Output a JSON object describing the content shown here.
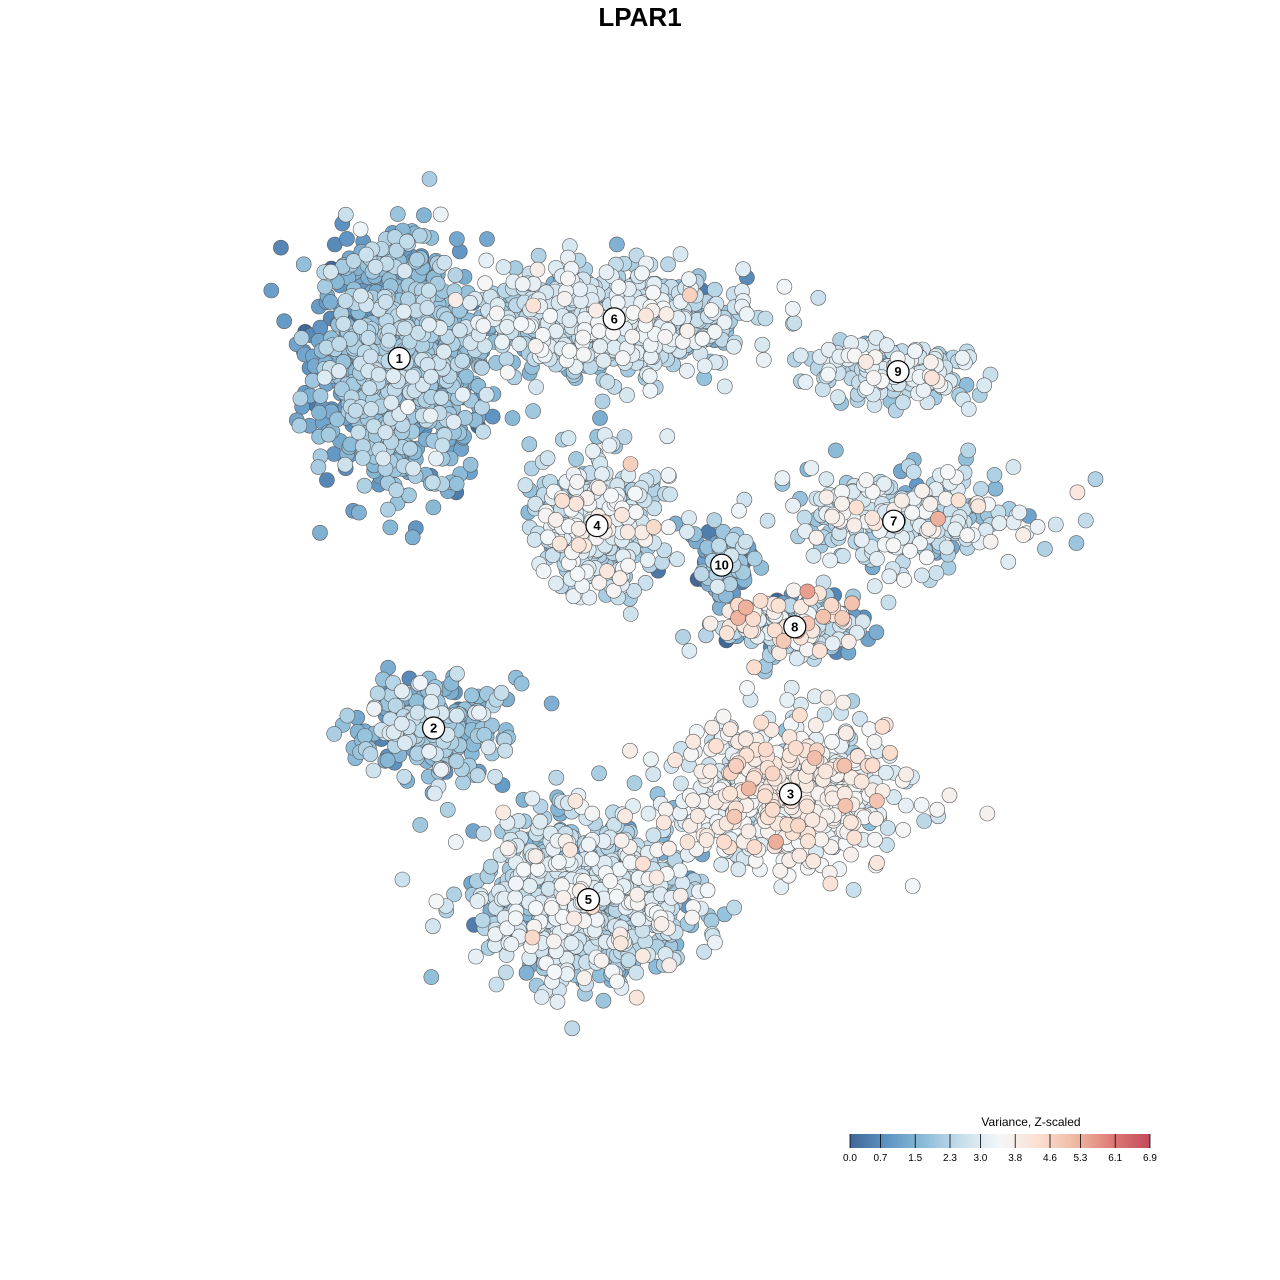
{
  "chart_data": {
    "type": "scatter",
    "title": "LPAR1",
    "xlabel": "",
    "ylabel": "",
    "grid": false,
    "axes_visible": false,
    "legend_position": "bottom-right",
    "color_scale": {
      "title": "Variance, Z-scaled",
      "min": 0.0,
      "max": 6.9,
      "ticks": [
        "0.0",
        "0.7",
        "1.5",
        "2.3",
        "3.0",
        "3.8",
        "4.6",
        "5.3",
        "6.1",
        "6.9"
      ],
      "tick_values": [
        0.0,
        0.7,
        1.5,
        2.3,
        3.0,
        3.8,
        4.6,
        5.3,
        6.1,
        6.9
      ],
      "palette": [
        "#3f6797",
        "#5f94c4",
        "#8dbdd9",
        "#c8dfec",
        "#f4f7f9",
        "#fbe0d2",
        "#f0b9a3",
        "#dd7a75",
        "#c24a5b"
      ]
    },
    "clusters": [
      {
        "label": "1",
        "x": -0.56,
        "y": 0.64,
        "spread": [
          0.17,
          0.24
        ],
        "n": 1100,
        "mean": 1.6,
        "sd": 0.6
      },
      {
        "label": "2",
        "x": -0.48,
        "y": -0.2,
        "spread": [
          0.15,
          0.1
        ],
        "n": 260,
        "mean": 1.9,
        "sd": 0.6
      },
      {
        "label": "3",
        "x": 0.35,
        "y": -0.35,
        "spread": [
          0.22,
          0.15
        ],
        "n": 620,
        "mean": 3.3,
        "sd": 0.6
      },
      {
        "label": "4",
        "x": -0.1,
        "y": 0.26,
        "spread": [
          0.13,
          0.13
        ],
        "n": 380,
        "mean": 2.7,
        "sd": 0.7
      },
      {
        "label": "5",
        "x": -0.12,
        "y": -0.59,
        "spread": [
          0.22,
          0.17
        ],
        "n": 900,
        "mean": 2.4,
        "sd": 0.7
      },
      {
        "label": "6",
        "x": -0.06,
        "y": 0.73,
        "spread": [
          0.28,
          0.11
        ],
        "n": 700,
        "mean": 2.5,
        "sd": 0.6
      },
      {
        "label": "7",
        "x": 0.59,
        "y": 0.27,
        "spread": [
          0.26,
          0.1
        ],
        "n": 300,
        "mean": 2.6,
        "sd": 0.7
      },
      {
        "label": "8",
        "x": 0.36,
        "y": 0.03,
        "spread": [
          0.16,
          0.06
        ],
        "n": 260,
        "mean": 2.2,
        "sd": 1.3
      },
      {
        "label": "9",
        "x": 0.6,
        "y": 0.61,
        "spread": [
          0.16,
          0.06
        ],
        "n": 200,
        "mean": 2.6,
        "sd": 0.5
      },
      {
        "label": "10",
        "x": 0.19,
        "y": 0.17,
        "spread": [
          0.06,
          0.06
        ],
        "n": 110,
        "mean": 1.3,
        "sd": 0.6
      }
    ]
  }
}
